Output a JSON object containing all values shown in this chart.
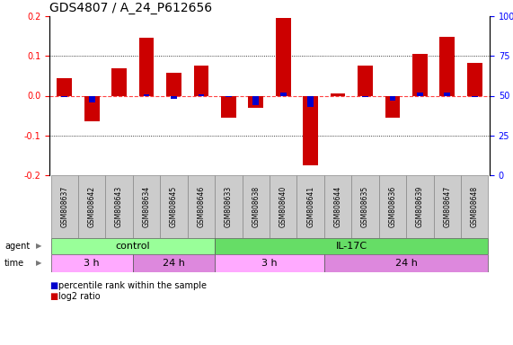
{
  "title": "GDS4807 / A_24_P612656",
  "samples": [
    "GSM808637",
    "GSM808642",
    "GSM808643",
    "GSM808634",
    "GSM808645",
    "GSM808646",
    "GSM808633",
    "GSM808638",
    "GSM808640",
    "GSM808641",
    "GSM808644",
    "GSM808635",
    "GSM808636",
    "GSM808639",
    "GSM808647",
    "GSM808648"
  ],
  "log2_ratio": [
    0.045,
    -0.065,
    0.068,
    0.145,
    0.058,
    0.075,
    -0.055,
    -0.03,
    0.195,
    -0.175,
    0.005,
    0.075,
    -0.055,
    0.105,
    0.148,
    0.082
  ],
  "percentile_rank": [
    49,
    46,
    50,
    51,
    48,
    51,
    49,
    44,
    52,
    43,
    50,
    49,
    47,
    52,
    52,
    49
  ],
  "ylim": [
    -0.2,
    0.2
  ],
  "yticks_left": [
    -0.2,
    -0.1,
    0.0,
    0.1,
    0.2
  ],
  "yticks_right": [
    0,
    25,
    50,
    75,
    100
  ],
  "agent_groups": [
    {
      "label": "control",
      "start": 0,
      "end": 6,
      "color": "#99ff99"
    },
    {
      "label": "IL-17C",
      "start": 6,
      "end": 16,
      "color": "#66dd66"
    }
  ],
  "time_groups": [
    {
      "label": "3 h",
      "start": 0,
      "end": 3,
      "color": "#ffaaff"
    },
    {
      "label": "24 h",
      "start": 3,
      "end": 6,
      "color": "#dd88dd"
    },
    {
      "label": "3 h",
      "start": 6,
      "end": 10,
      "color": "#ffaaff"
    },
    {
      "label": "24 h",
      "start": 10,
      "end": 16,
      "color": "#dd88dd"
    }
  ],
  "bar_color_red": "#cc0000",
  "bar_color_blue": "#0000cc",
  "ref_line_color": "#ff4444",
  "bg_color": "#ffffff",
  "tick_fontsize": 7,
  "sample_fontsize": 5.5,
  "label_fontsize": 7,
  "group_fontsize": 8,
  "legend_fontsize": 7,
  "title_fontsize": 10
}
